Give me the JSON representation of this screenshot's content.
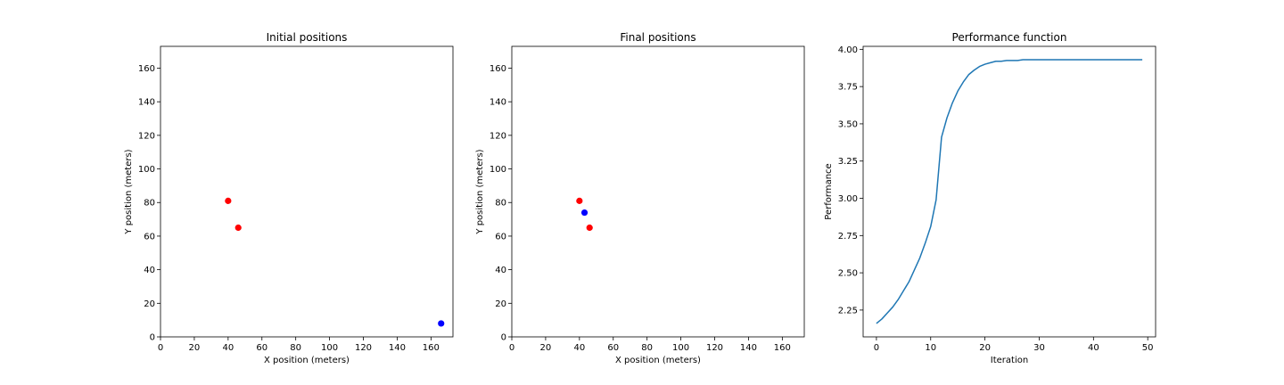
{
  "chart_data": [
    {
      "type": "scatter",
      "title": "Initial positions",
      "xlabel": "X position (meters)",
      "ylabel": "Y position (meters)",
      "xlim": [
        0,
        173
      ],
      "ylim": [
        0,
        173
      ],
      "xticks": [
        0,
        20,
        40,
        60,
        80,
        100,
        120,
        140,
        160
      ],
      "yticks": [
        0,
        20,
        40,
        60,
        80,
        100,
        120,
        140,
        160
      ],
      "grid": false,
      "series": [
        {
          "color": "#ff0000",
          "points": [
            [
              40,
              81
            ],
            [
              46,
              65
            ]
          ]
        },
        {
          "color": "#0000ff",
          "points": [
            [
              166,
              8
            ]
          ]
        }
      ]
    },
    {
      "type": "scatter",
      "title": "Final positions",
      "xlabel": "X position (meters)",
      "ylabel": "Y position (meters)",
      "xlim": [
        0,
        173
      ],
      "ylim": [
        0,
        173
      ],
      "xticks": [
        0,
        20,
        40,
        60,
        80,
        100,
        120,
        140,
        160
      ],
      "yticks": [
        0,
        20,
        40,
        60,
        80,
        100,
        120,
        140,
        160
      ],
      "grid": false,
      "series": [
        {
          "color": "#ff0000",
          "points": [
            [
              40,
              81
            ],
            [
              46,
              65
            ]
          ]
        },
        {
          "color": "#0000ff",
          "points": [
            [
              43,
              74
            ]
          ]
        }
      ]
    },
    {
      "type": "line",
      "title": "Performance function",
      "xlabel": "Iteration",
      "ylabel": "Performance",
      "xlim": [
        -2.45,
        51.45
      ],
      "ylim": [
        2.07,
        4.02
      ],
      "xticks": [
        0,
        10,
        20,
        30,
        40,
        50
      ],
      "yticks": [
        "2.25",
        "2.50",
        "2.75",
        "3.00",
        "3.25",
        "3.50",
        "3.75",
        "4.00"
      ],
      "grid": false,
      "series": [
        {
          "color": "#1f77b4",
          "x": [
            0,
            1,
            2,
            3,
            4,
            5,
            6,
            7,
            8,
            9,
            10,
            11,
            12,
            13,
            14,
            15,
            16,
            17,
            18,
            19,
            20,
            21,
            22,
            23,
            24,
            25,
            26,
            27,
            28,
            29,
            30,
            31,
            32,
            33,
            34,
            35,
            36,
            37,
            38,
            39,
            40,
            41,
            42,
            43,
            44,
            45,
            46,
            47,
            48,
            49
          ],
          "y": [
            2.16,
            2.19,
            2.23,
            2.27,
            2.32,
            2.38,
            2.44,
            2.52,
            2.6,
            2.7,
            2.81,
            2.99,
            3.41,
            3.54,
            3.64,
            3.72,
            3.78,
            3.83,
            3.86,
            3.885,
            3.9,
            3.91,
            3.92,
            3.92,
            3.925,
            3.925,
            3.925,
            3.93,
            3.93,
            3.93,
            3.93,
            3.93,
            3.93,
            3.93,
            3.93,
            3.93,
            3.93,
            3.93,
            3.93,
            3.93,
            3.93,
            3.93,
            3.93,
            3.93,
            3.93,
            3.93,
            3.93,
            3.93,
            3.93,
            3.93
          ]
        }
      ]
    }
  ]
}
